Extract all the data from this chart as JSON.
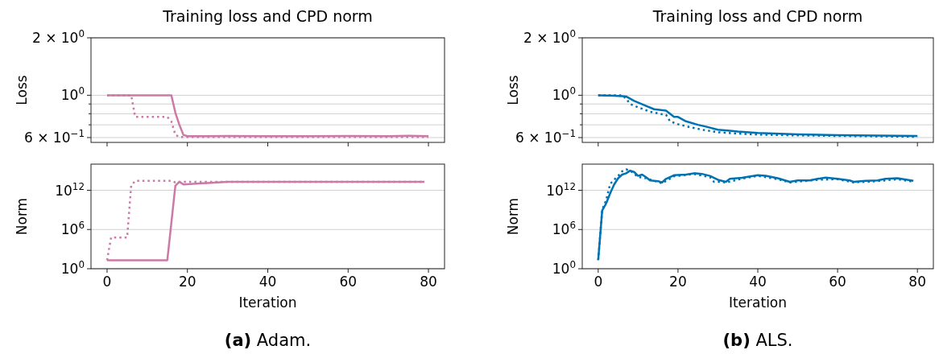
{
  "chart_data": [
    {
      "type": "line",
      "title": "Training loss and CPD norm",
      "ylabel": "Loss",
      "log": "y",
      "grid": "y",
      "tick_labels": "y",
      "xlim": [
        -4,
        84
      ],
      "xticks": [
        0,
        20,
        40,
        60,
        80
      ],
      "ylim": [
        0.566,
        2
      ],
      "yticks": [
        {
          "value": 0.6,
          "label": "6 × 10$^{−1}$"
        },
        {
          "value": 0.7,
          "label": null
        },
        {
          "value": 0.8,
          "label": null
        },
        {
          "value": 0.9,
          "label": null
        },
        {
          "value": 1,
          "label": "10$^{0}$"
        },
        {
          "value": 2,
          "label": "2 × 10$^{0}$"
        }
      ],
      "series": [
        {
          "color": "#cc79a7",
          "line_style": "dotted",
          "x": [
            0,
            6,
            7,
            15,
            16,
            17,
            18,
            20,
            40,
            80
          ],
          "values": [
            1,
            1,
            0.77,
            0.77,
            0.73,
            0.62,
            0.605,
            0.605,
            0.605,
            0.605
          ]
        },
        {
          "color": "#cc79a7",
          "line_style": "solid",
          "x": [
            0,
            16,
            17,
            18,
            19,
            20,
            30,
            40,
            50,
            60,
            70,
            75,
            80
          ],
          "values": [
            1,
            1,
            0.81,
            0.7,
            0.62,
            0.61,
            0.612,
            0.61,
            0.61,
            0.612,
            0.61,
            0.613,
            0.61
          ]
        }
      ]
    },
    {
      "type": "line",
      "title": "Training loss and CPD norm",
      "ylabel": "Loss",
      "log": "y",
      "grid": "y",
      "tick_labels": "y",
      "xlim": [
        -4,
        84
      ],
      "xticks": [
        0,
        20,
        40,
        60,
        80
      ],
      "ylim": [
        0.566,
        2
      ],
      "yticks": [
        {
          "value": 0.6,
          "label": "6 × 10$^{−1}$"
        },
        {
          "value": 0.7,
          "label": null
        },
        {
          "value": 0.8,
          "label": null
        },
        {
          "value": 0.9,
          "label": null
        },
        {
          "value": 1,
          "label": "10$^{0}$"
        },
        {
          "value": 2,
          "label": "2 × 10$^{0}$"
        }
      ],
      "series": [
        {
          "color": "#0072b2",
          "line_style": "dotted",
          "x": [
            0,
            6,
            7,
            8,
            10,
            13,
            16,
            17,
            18,
            20,
            23,
            26,
            30,
            35,
            40,
            50,
            60,
            80
          ],
          "values": [
            1,
            1,
            0.96,
            0.9,
            0.865,
            0.82,
            0.795,
            0.79,
            0.73,
            0.705,
            0.68,
            0.66,
            0.64,
            0.63,
            0.622,
            0.616,
            0.612,
            0.606
          ]
        },
        {
          "color": "#0072b2",
          "line_style": "solid",
          "x": [
            0,
            6,
            7,
            9,
            12,
            14,
            17,
            19,
            20,
            22,
            25,
            27,
            30,
            33,
            35,
            40,
            50,
            60,
            70,
            80
          ],
          "values": [
            1,
            0.99,
            0.985,
            0.935,
            0.88,
            0.845,
            0.83,
            0.77,
            0.77,
            0.73,
            0.7,
            0.685,
            0.66,
            0.652,
            0.645,
            0.635,
            0.624,
            0.618,
            0.614,
            0.612
          ]
        }
      ]
    },
    {
      "type": "line",
      "xlabel": "Iteration",
      "ylabel": "Norm",
      "log": "y",
      "grid": "y",
      "xlim": [
        -4,
        84
      ],
      "xticks": [
        0,
        20,
        40,
        60,
        80
      ],
      "ylim": [
        1,
        1e+16
      ],
      "yticks": [
        {
          "value": 1,
          "label": "10$^{0}$"
        },
        {
          "value": 1000000.0,
          "label": "10$^{6}$"
        },
        {
          "value": 1000000000000.0,
          "label": "10$^{12}$"
        }
      ],
      "annotations": [
        "(a) Adam."
      ],
      "series": [
        {
          "color": "#cc79a7",
          "line_style": "dotted",
          "x": [
            0,
            1,
            5,
            6,
            7,
            16,
            17,
            18,
            30,
            79
          ],
          "values": [
            20,
            60000,
            60000,
            5000000000000.0,
            28000000000000.0,
            28000000000000.0,
            16000000000000.0,
            20000000000000.0,
            20000000000000.0,
            20000000000000.0
          ]
        },
        {
          "color": "#cc79a7",
          "line_style": "solid",
          "x": [
            0,
            15,
            17,
            18,
            19,
            25,
            30,
            40,
            60,
            79
          ],
          "values": [
            20,
            20,
            5000000000000.0,
            20000000000000.0,
            8000000000000.0,
            13000000000000.0,
            20000000000000.0,
            20000000000000.0,
            20000000000000.0,
            20000000000000.0
          ]
        }
      ]
    },
    {
      "type": "line",
      "xlabel": "Iteration",
      "ylabel": "Norm",
      "log": "y",
      "grid": "y",
      "xlim": [
        -4,
        84
      ],
      "xticks": [
        0,
        20,
        40,
        60,
        80
      ],
      "ylim": [
        1,
        1e+16
      ],
      "yticks": [
        {
          "value": 1,
          "label": "10$^{0}$"
        },
        {
          "value": 1000000.0,
          "label": "10$^{6}$"
        },
        {
          "value": 1000000000000.0,
          "label": "10$^{12}$"
        }
      ],
      "annotations": [
        "(b) ALS."
      ],
      "series": [
        {
          "color": "#0072b2",
          "line_style": "dotted",
          "x": [
            0,
            1,
            2,
            3,
            4,
            5,
            6,
            7,
            8,
            10,
            12,
            14,
            16,
            19,
            24,
            28,
            29,
            31,
            32,
            36,
            40,
            45,
            48,
            55,
            60,
            64,
            70,
            75,
            79
          ],
          "values": [
            21,
            1000000000.0,
            32000000000.0,
            10000000000000.0,
            40000000000000.0,
            160000000000000.0,
            800000000000000.0,
            1600000000000000.0,
            1000000000000000.0,
            110000000000000.0,
            70000000000000.0,
            28000000000000.0,
            12000000000000.0,
            140000000000000.0,
            300000000000000.0,
            100000000000000.0,
            20000000000000.0,
            20000000000000.0,
            15000000000000.0,
            60000000000000.0,
            160000000000000.0,
            50000000000000.0,
            16000000000000.0,
            40000000000000.0,
            50000000000000.0,
            16000000000000.0,
            25000000000000.0,
            50000000000000.0,
            20000000000000.0
          ]
        },
        {
          "color": "#0072b2",
          "line_style": "solid",
          "x": [
            0,
            1,
            2,
            3,
            4,
            5,
            6,
            7,
            8,
            9,
            10,
            11,
            12,
            13,
            15,
            16,
            17,
            19,
            22,
            24,
            26,
            28,
            30,
            32,
            33,
            36,
            40,
            42,
            45,
            48,
            50,
            53,
            55,
            57,
            60,
            63,
            64,
            67,
            70,
            72,
            75,
            79
          ],
          "values": [
            21,
            790000000.0,
            10000000000.0,
            350000000000.0,
            7900000000000.0,
            71000000000000.0,
            250000000000000.0,
            400000000000000.0,
            1000000000000000.0,
            630000000000000.0,
            160000000000000.0,
            250000000000000.0,
            100000000000000.0,
            32000000000000.0,
            25000000000000.0,
            16000000000000.0,
            56000000000000.0,
            200000000000000.0,
            250000000000000.0,
            400000000000000.0,
            320000000000000.0,
            160000000000000.0,
            40000000000000.0,
            20000000000000.0,
            56000000000000.0,
            79000000000000.0,
            200000000000000.0,
            160000000000000.0,
            71000000000000.0,
            20000000000000.0,
            32000000000000.0,
            32000000000000.0,
            56000000000000.0,
            89000000000000.0,
            56000000000000.0,
            32000000000000.0,
            20000000000000.0,
            28000000000000.0,
            32000000000000.0,
            56000000000000.0,
            71000000000000.0,
            28000000000000.0
          ]
        }
      ]
    }
  ]
}
